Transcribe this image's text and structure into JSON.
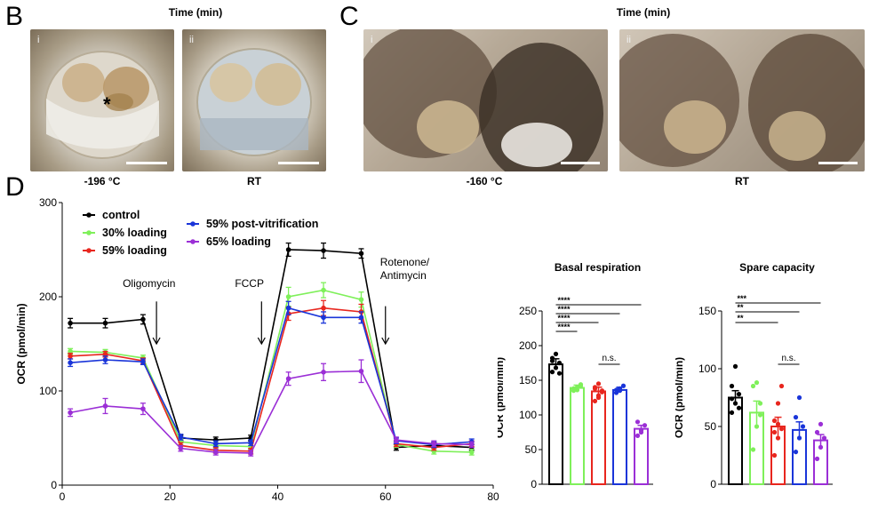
{
  "top_axis_labels": [
    "Time (min)",
    "Time (min)"
  ],
  "panel_b": {
    "letter": "B",
    "images": [
      {
        "roman": "i",
        "caption": "-196 °C",
        "marker": "*"
      },
      {
        "roman": "ii",
        "caption": "RT"
      }
    ]
  },
  "panel_c": {
    "letter": "C",
    "images": [
      {
        "roman": "i",
        "caption": "-160 °C"
      },
      {
        "roman": "ii",
        "caption": "RT"
      }
    ]
  },
  "panel_d": {
    "letter": "D",
    "chart_data": [
      {
        "type": "line",
        "ylabel": "OCR (pmol/min)",
        "xlim": [
          0,
          80
        ],
        "ylim": [
          0,
          300
        ],
        "xticks": [
          0,
          20,
          40,
          60,
          80
        ],
        "yticks": [
          0,
          100,
          200,
          300
        ],
        "annotations": [
          {
            "text": "Oligomycin",
            "x": 17.5
          },
          {
            "text": "FCCP",
            "x": 37
          },
          {
            "text": "Rotenone/",
            "text2": "Antimycin",
            "x": 60
          }
        ],
        "x": [
          1.5,
          8,
          15,
          22,
          28.5,
          35,
          42,
          48.5,
          55.5,
          62,
          69,
          76
        ],
        "series": [
          {
            "name": "control",
            "color": "#000000",
            "values": [
              172,
              172,
              176,
              50,
              48,
              50,
              250,
              249,
              246,
              40,
              42,
              40
            ],
            "err": [
              5,
              5,
              5,
              3,
              3,
              3,
              7,
              8,
              5,
              3,
              3,
              3
            ]
          },
          {
            "name": "30% loading",
            "color": "#7ff05a",
            "values": [
              142,
              141,
              135,
              46,
              42,
              41,
              200,
              207,
              197,
              43,
              36,
              35
            ],
            "err": [
              3,
              3,
              3,
              3,
              3,
              3,
              10,
              8,
              8,
              3,
              3,
              3
            ]
          },
          {
            "name": "59% loading",
            "color": "#e8261e",
            "values": [
              137,
              139,
              132,
              42,
              37,
              36,
              182,
              188,
              184,
              44,
              40,
              44
            ],
            "err": [
              3,
              3,
              3,
              3,
              3,
              3,
              7,
              8,
              8,
              3,
              3,
              3
            ]
          },
          {
            "name": "59% post-vitrification",
            "color": "#1a35d9",
            "values": [
              130,
              133,
              131,
              51,
              44,
              45,
              188,
              178,
              178,
              47,
              43,
              46
            ],
            "err": [
              4,
              4,
              3,
              3,
              3,
              3,
              7,
              6,
              6,
              3,
              3,
              3
            ]
          },
          {
            "name": "65% loading",
            "color": "#9b2fd6",
            "values": [
              77,
              84,
              81,
              39,
              35,
              34,
              113,
              120,
              121,
              48,
              44,
              43
            ],
            "err": [
              4,
              8,
              6,
              3,
              3,
              3,
              7,
              9,
              12,
              3,
              3,
              3
            ]
          }
        ]
      },
      {
        "type": "bar",
        "title": "Basal respiration",
        "ylabel": "OCR (pmol/min)",
        "ylim": [
          0,
          250
        ],
        "yticks": [
          0,
          50,
          100,
          150,
          200,
          250
        ],
        "values": [
          173,
          139,
          134,
          136,
          80
        ],
        "err": [
          8,
          4,
          6,
          4,
          5
        ],
        "colors": [
          "#000000",
          "#7ff05a",
          "#e8261e",
          "#1a35d9",
          "#9b2fd6"
        ],
        "points": [
          [
            162,
            168,
            175,
            182,
            188,
            160,
            178
          ],
          [
            135,
            140,
            142,
            138,
            136,
            144
          ],
          [
            120,
            128,
            135,
            140,
            145,
            133,
            138,
            125
          ],
          [
            132,
            138,
            142,
            136,
            135
          ],
          [
            70,
            78,
            85,
            90,
            75
          ]
        ],
        "significance": [
          "****",
          "****",
          "****",
          "****"
        ],
        "ns_label": "n.s."
      },
      {
        "type": "bar",
        "title": "Spare capacity",
        "ylabel": "OCR (pmol/min)",
        "ylim": [
          0,
          150
        ],
        "yticks": [
          0,
          50,
          100,
          150
        ],
        "values": [
          75,
          62,
          50,
          47,
          38
        ],
        "err": [
          6,
          10,
          8,
          7,
          5
        ],
        "colors": [
          "#000000",
          "#7ff05a",
          "#e8261e",
          "#1a35d9",
          "#9b2fd6"
        ],
        "points": [
          [
            62,
            70,
            78,
            85,
            102,
            66,
            74
          ],
          [
            30,
            50,
            60,
            85,
            88,
            70
          ],
          [
            25,
            40,
            48,
            55,
            70,
            85,
            45,
            52
          ],
          [
            28,
            40,
            50,
            58,
            75
          ],
          [
            22,
            32,
            40,
            45,
            52
          ]
        ],
        "significance": [
          "***",
          "**",
          "**"
        ],
        "ns_label": "n.s."
      }
    ]
  }
}
